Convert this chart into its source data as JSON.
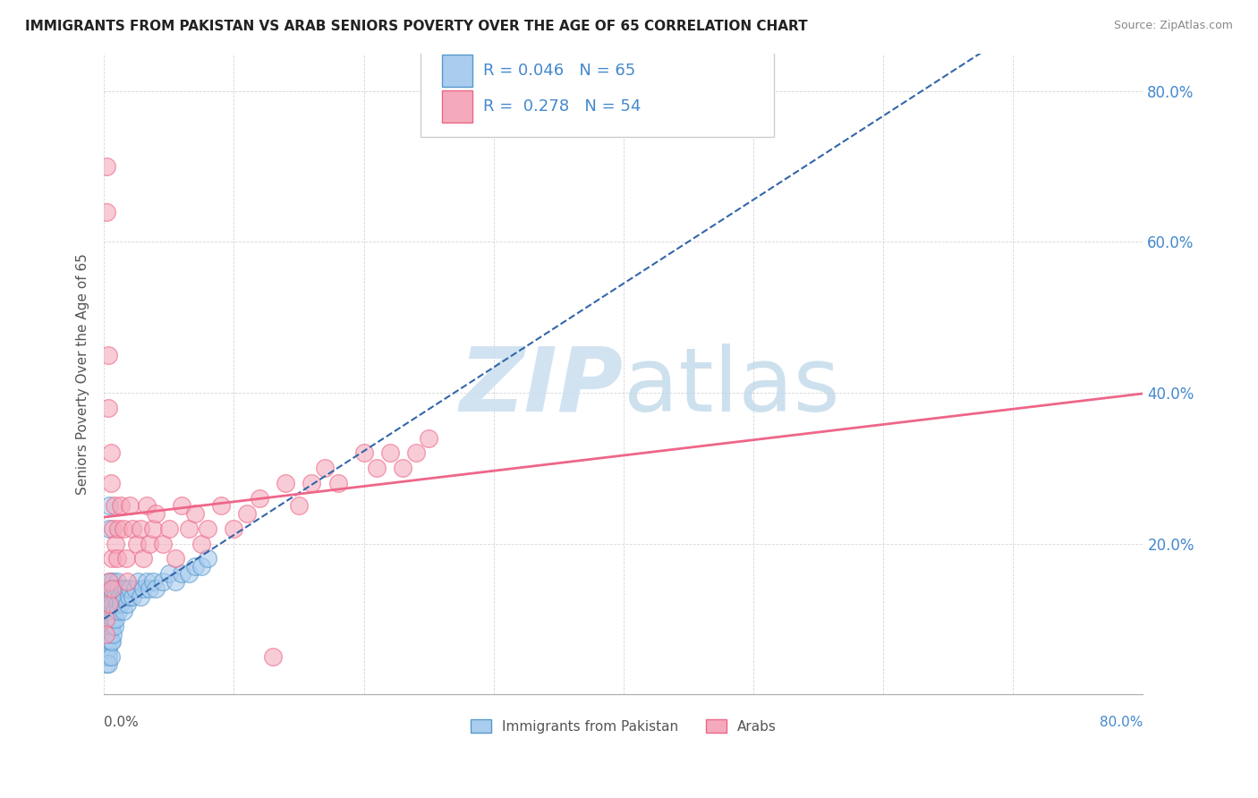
{
  "title": "IMMIGRANTS FROM PAKISTAN VS ARAB SENIORS POVERTY OVER THE AGE OF 65 CORRELATION CHART",
  "source": "Source: ZipAtlas.com",
  "ylabel": "Seniors Poverty Over the Age of 65",
  "legend_label1": "Immigrants from Pakistan",
  "legend_label2": "Arabs",
  "R1": "0.046",
  "N1": "65",
  "R2": "0.278",
  "N2": "54",
  "color_pakistan_fill": "#aaccee",
  "color_pakistan_edge": "#5599cc",
  "color_arabs_fill": "#f4aabc",
  "color_arabs_edge": "#ee6688",
  "color_line_pakistan": "#3366aa",
  "color_line_arabs": "#ee6688",
  "color_text_blue": "#4488cc",
  "color_grid": "#cccccc",
  "watermark_color": "#cce0f0",
  "pakistan_x": [
    0.001,
    0.001,
    0.001,
    0.002,
    0.002,
    0.002,
    0.002,
    0.003,
    0.003,
    0.003,
    0.003,
    0.003,
    0.004,
    0.004,
    0.004,
    0.004,
    0.004,
    0.005,
    0.005,
    0.005,
    0.005,
    0.005,
    0.006,
    0.006,
    0.006,
    0.006,
    0.007,
    0.007,
    0.007,
    0.007,
    0.008,
    0.008,
    0.008,
    0.009,
    0.009,
    0.01,
    0.01,
    0.011,
    0.011,
    0.012,
    0.013,
    0.014,
    0.015,
    0.016,
    0.017,
    0.018,
    0.019,
    0.02,
    0.022,
    0.024,
    0.026,
    0.028,
    0.03,
    0.033,
    0.035,
    0.038,
    0.04,
    0.045,
    0.05,
    0.055,
    0.06,
    0.065,
    0.07,
    0.075,
    0.08
  ],
  "pakistan_y": [
    0.12,
    0.08,
    0.05,
    0.1,
    0.07,
    0.06,
    0.04,
    0.09,
    0.07,
    0.06,
    0.05,
    0.04,
    0.25,
    0.22,
    0.15,
    0.1,
    0.08,
    0.14,
    0.12,
    0.09,
    0.07,
    0.05,
    0.13,
    0.11,
    0.09,
    0.07,
    0.15,
    0.12,
    0.1,
    0.08,
    0.14,
    0.11,
    0.09,
    0.13,
    0.1,
    0.15,
    0.12,
    0.14,
    0.11,
    0.13,
    0.12,
    0.14,
    0.11,
    0.13,
    0.14,
    0.12,
    0.13,
    0.14,
    0.13,
    0.14,
    0.15,
    0.13,
    0.14,
    0.15,
    0.14,
    0.15,
    0.14,
    0.15,
    0.16,
    0.15,
    0.16,
    0.16,
    0.17,
    0.17,
    0.18
  ],
  "arabs_x": [
    0.001,
    0.001,
    0.002,
    0.002,
    0.003,
    0.003,
    0.004,
    0.004,
    0.005,
    0.005,
    0.006,
    0.006,
    0.007,
    0.008,
    0.009,
    0.01,
    0.011,
    0.013,
    0.015,
    0.017,
    0.018,
    0.02,
    0.022,
    0.025,
    0.028,
    0.03,
    0.033,
    0.035,
    0.038,
    0.04,
    0.045,
    0.05,
    0.055,
    0.06,
    0.065,
    0.07,
    0.075,
    0.08,
    0.09,
    0.1,
    0.11,
    0.12,
    0.13,
    0.14,
    0.15,
    0.16,
    0.17,
    0.18,
    0.2,
    0.21,
    0.22,
    0.23,
    0.24,
    0.25
  ],
  "arabs_y": [
    0.1,
    0.08,
    0.7,
    0.64,
    0.45,
    0.38,
    0.15,
    0.12,
    0.32,
    0.28,
    0.18,
    0.14,
    0.22,
    0.25,
    0.2,
    0.18,
    0.22,
    0.25,
    0.22,
    0.18,
    0.15,
    0.25,
    0.22,
    0.2,
    0.22,
    0.18,
    0.25,
    0.2,
    0.22,
    0.24,
    0.2,
    0.22,
    0.18,
    0.25,
    0.22,
    0.24,
    0.2,
    0.22,
    0.25,
    0.22,
    0.24,
    0.26,
    0.05,
    0.28,
    0.25,
    0.28,
    0.3,
    0.28,
    0.32,
    0.3,
    0.32,
    0.3,
    0.32,
    0.34
  ],
  "xlim": [
    0.0,
    0.8
  ],
  "ylim": [
    0.0,
    0.85
  ],
  "x_ticks": [
    0.0,
    0.1,
    0.2,
    0.3,
    0.4,
    0.5,
    0.6,
    0.7,
    0.8
  ],
  "y_ticks": [
    0.0,
    0.2,
    0.4,
    0.6,
    0.8
  ]
}
